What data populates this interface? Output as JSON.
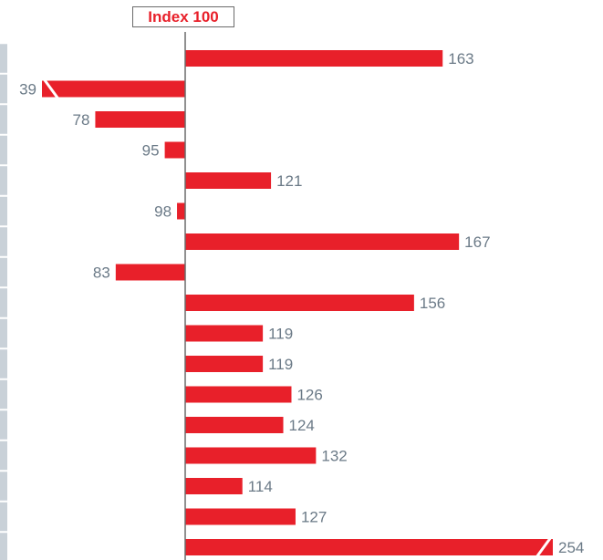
{
  "chart_data": {
    "type": "bar",
    "orientation": "horizontal",
    "baseline": 100,
    "baseline_label": "Index 100",
    "values": [
      163,
      39,
      78,
      95,
      121,
      98,
      167,
      83,
      156,
      119,
      119,
      126,
      124,
      132,
      114,
      127,
      254
    ],
    "truncated": [
      false,
      true,
      false,
      false,
      false,
      false,
      false,
      false,
      false,
      false,
      false,
      false,
      false,
      false,
      false,
      false,
      true
    ],
    "bar_color": "#e8202a",
    "label_color": "#6b7a87",
    "axis_color": "#6b6b6b"
  }
}
